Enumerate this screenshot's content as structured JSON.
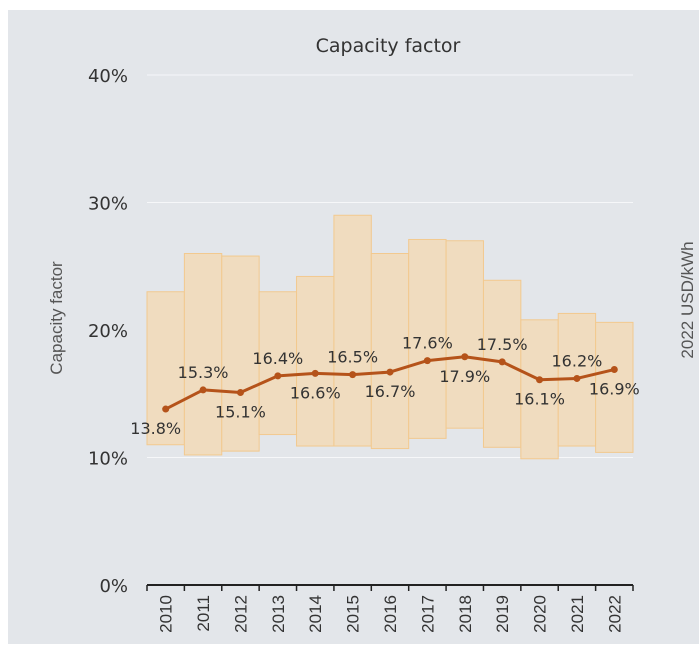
{
  "chart_data": {
    "type": "line",
    "title": "Capacity factor",
    "ylabel": "Capacity factor",
    "secondary_ylabel": "2022 USD/kWh",
    "ylim": [
      0,
      40
    ],
    "yticks": [
      "0%",
      "10%",
      "20%",
      "30%",
      "40%"
    ],
    "ytick_values": [
      0,
      10,
      20,
      30,
      40
    ],
    "categories": [
      "2010",
      "2011",
      "2012",
      "2013",
      "2014",
      "2015",
      "2016",
      "2017",
      "2018",
      "2019",
      "2020",
      "2021",
      "2022"
    ],
    "series": [
      {
        "values": [
          13.8,
          15.3,
          15.1,
          16.4,
          16.6,
          16.5,
          16.7,
          17.6,
          17.9,
          17.5,
          16.1,
          16.2,
          16.9
        ],
        "labels": [
          "13.8%",
          "15.3%",
          "15.1%",
          "16.4%",
          "16.6%",
          "16.5%",
          "16.7%",
          "17.6%",
          "17.9%",
          "17.5%",
          "16.1%",
          "16.2%",
          "16.9%"
        ],
        "label_positions": [
          "below",
          "above",
          "below",
          "above",
          "below",
          "above",
          "below",
          "above",
          "below",
          "above",
          "below",
          "above",
          "below"
        ]
      }
    ],
    "ranges": {
      "low": [
        11.0,
        10.2,
        10.5,
        11.8,
        10.9,
        10.9,
        10.7,
        11.5,
        12.3,
        10.8,
        9.9,
        10.9,
        10.4
      ],
      "high": [
        23.0,
        26.0,
        25.8,
        23.0,
        24.2,
        29.0,
        26.0,
        27.1,
        27.0,
        23.9,
        20.8,
        21.3,
        20.6
      ]
    },
    "grid": true,
    "colors": {
      "background": "#e3e6ea",
      "band_fill": "#f0dcbf",
      "band_stroke": "#f2c98f",
      "line": "#b5531a",
      "gridline": "#f6f7f9",
      "axis": "#222222",
      "text": "#333333"
    }
  }
}
